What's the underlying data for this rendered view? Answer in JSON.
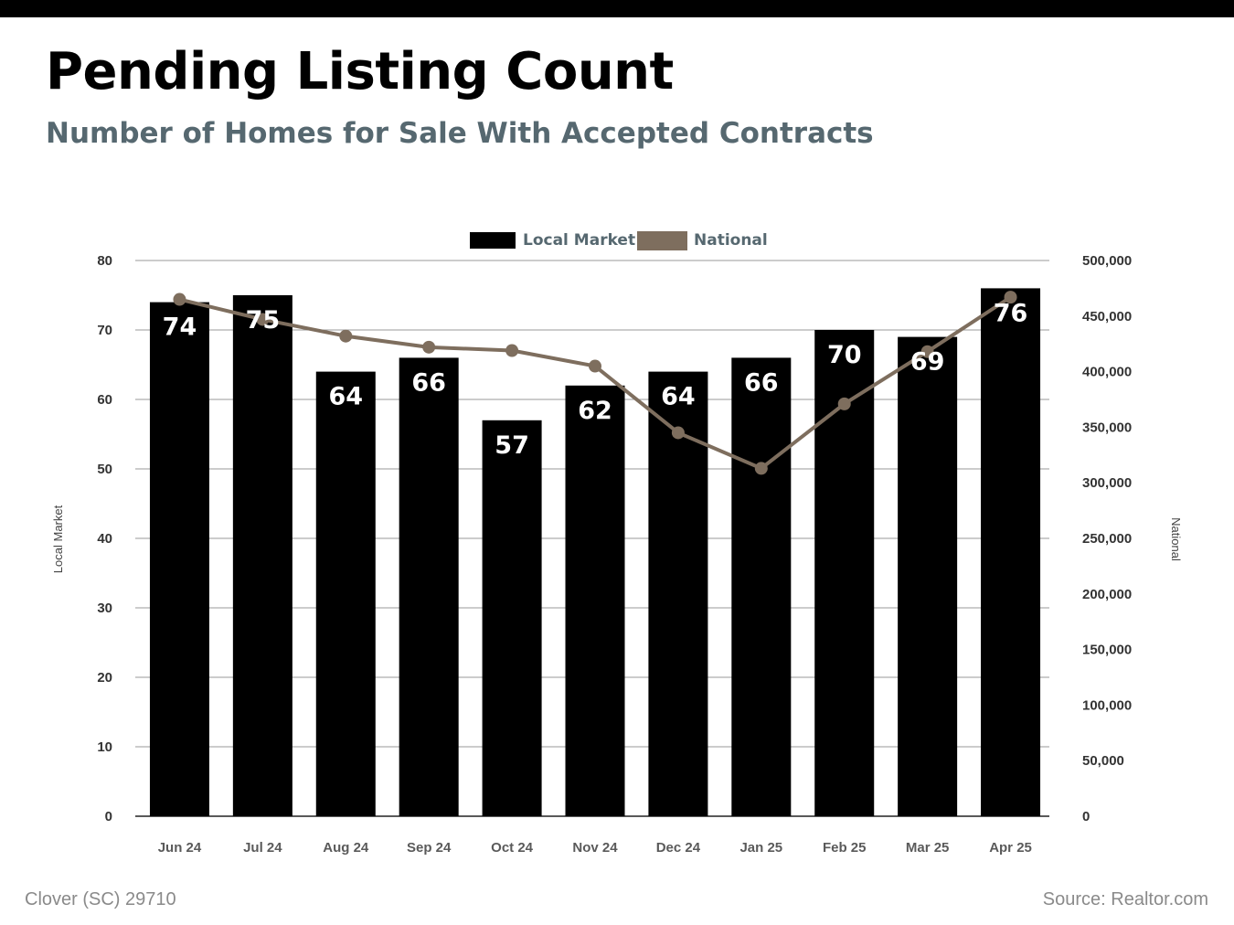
{
  "header": {
    "title": "Pending Listing Count",
    "subtitle": "Number of Homes for Sale With Accepted Contracts"
  },
  "footer": {
    "location": "Clover (SC) 29710",
    "source": "Source: Realtor.com"
  },
  "colors": {
    "local_bar": "#000000",
    "national_line": "#7e6e5e",
    "grid": "#9a9a9a",
    "legend_text": "#566870",
    "tick_text": "#333333",
    "subtitle": "#566870"
  },
  "chart_data": {
    "type": "bar",
    "categories": [
      "Jun 24",
      "Jul 24",
      "Aug 24",
      "Sep 24",
      "Oct 24",
      "Nov 24",
      "Dec 24",
      "Jan 25",
      "Feb 25",
      "Mar 25",
      "Apr 25"
    ],
    "series": [
      {
        "name": "Local Market",
        "type": "bar",
        "axis": "left",
        "values": [
          74,
          75,
          64,
          66,
          57,
          62,
          64,
          66,
          70,
          69,
          76
        ]
      },
      {
        "name": "National",
        "type": "line",
        "axis": "right",
        "values": [
          465000,
          447000,
          432000,
          422000,
          419000,
          405000,
          345000,
          313000,
          371000,
          418000,
          467000
        ]
      }
    ],
    "y_left": {
      "label": "Local Market",
      "range": [
        0,
        80
      ],
      "ticks": [
        "0",
        "10",
        "20",
        "30",
        "40",
        "50",
        "60",
        "70",
        "80"
      ]
    },
    "y_right": {
      "label": "National",
      "range": [
        0,
        500000
      ],
      "ticks": [
        "0",
        "50,000",
        "100,000",
        "150,000",
        "200,000",
        "250,000",
        "300,000",
        "350,000",
        "400,000",
        "450,000",
        "500,000"
      ]
    },
    "legend": {
      "placement": "top-center",
      "entries": [
        "Local Market",
        "National"
      ]
    },
    "grid": true,
    "data_labels": [
      "74",
      "75",
      "64",
      "66",
      "57",
      "62",
      "64",
      "66",
      "70",
      "69",
      "76"
    ]
  }
}
